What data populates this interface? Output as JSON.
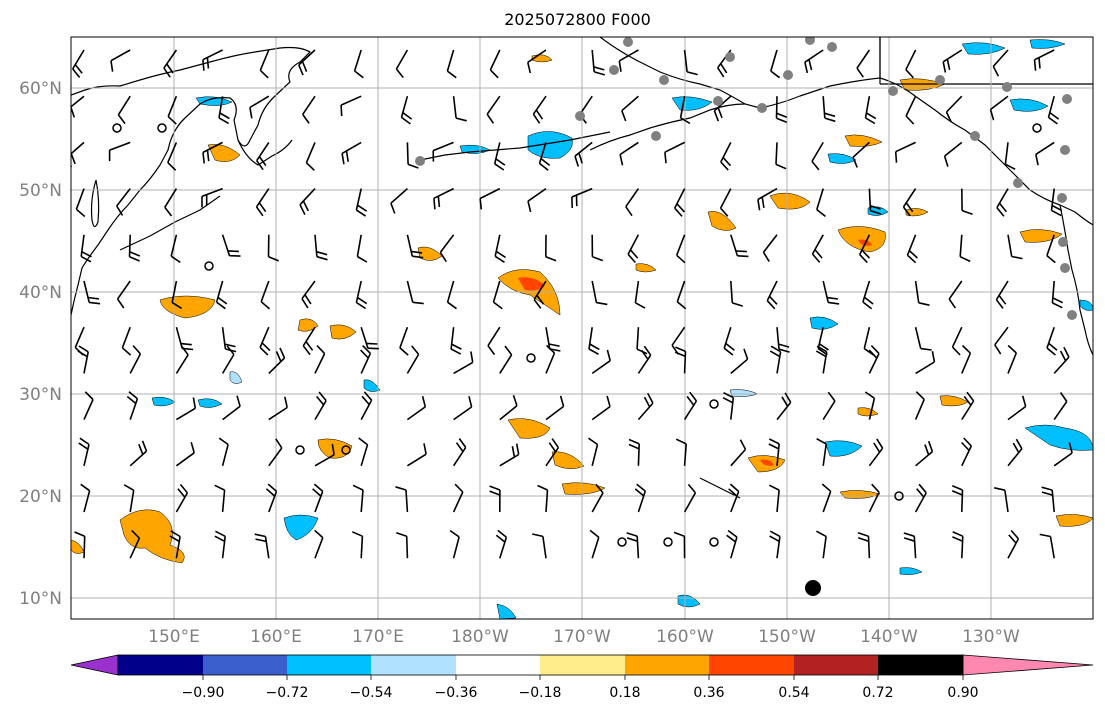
{
  "title": "2025072800 F000",
  "lat_labels": [
    "60°N",
    "50°N",
    "40°N",
    "30°N",
    "20°N",
    "10°N"
  ],
  "lon_labels": [
    "150°E",
    "160°E",
    "170°E",
    "180°W",
    "170°W",
    "160°W",
    "150°W",
    "140°W",
    "130°W"
  ],
  "colorbar": {
    "colors": [
      "#9932cc",
      "#00008b",
      "#3a5fcd",
      "#00bfff",
      "#b0e2ff",
      "#ffffff",
      "#ffec8b",
      "#ffa500",
      "#ff4500",
      "#b22222",
      "#ff88b0"
    ],
    "tick_labels": [
      "−0.90",
      "−0.72",
      "−0.54",
      "−0.36",
      "−0.18",
      "0.18",
      "0.36",
      "0.54",
      "0.72",
      "0.90"
    ]
  },
  "colors": {
    "land_outline": "#000000",
    "grid": "#b0b0b0",
    "station_gray": "#808080",
    "positive": "#ffa500",
    "positive_strong": "#ff4500",
    "negative": "#00bfff",
    "negative_weak": "#b0e2ff"
  }
}
